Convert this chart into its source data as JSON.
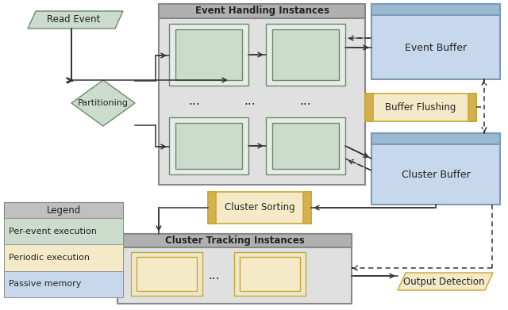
{
  "bg_color": "#ffffff",
  "colors": {
    "green_fill": "#ccdccc",
    "green_border": "#6a8a6a",
    "green_inner": "#d8e8d8",
    "yellow_fill": "#f5eac8",
    "yellow_border": "#c8a832",
    "yellow_inner": "#f8f0d8",
    "blue_fill": "#c8d8ec",
    "blue_border": "#7a9ab8",
    "blue_header": "#9ab8d0",
    "gray_fill": "#e0e0e0",
    "gray_border": "#888888",
    "gray_header": "#b0b0b0",
    "arrow_color": "#333333",
    "legend_header_fill": "#c0c0c0"
  },
  "legend": {
    "items": [
      {
        "label": "Per-event execution",
        "color": "#ccdccc"
      },
      {
        "label": "Periodic execution",
        "color": "#f5eac8"
      },
      {
        "label": "Passive memory",
        "color": "#c8d8ec"
      }
    ]
  }
}
